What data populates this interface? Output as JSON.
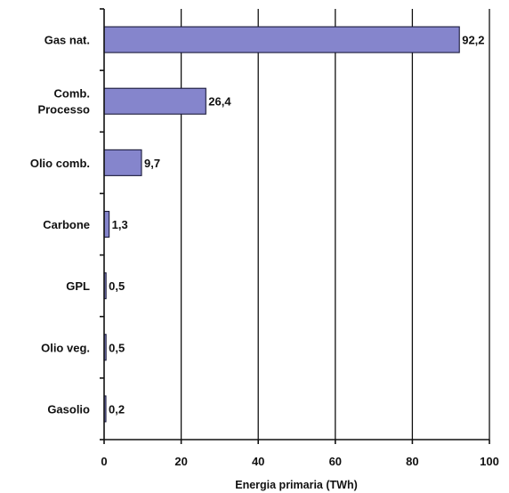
{
  "chart_data": {
    "type": "bar",
    "orientation": "horizontal",
    "categories": [
      [
        "Gas nat."
      ],
      [
        "Comb.",
        "Processo"
      ],
      [
        "Olio comb."
      ],
      [
        "Carbone"
      ],
      [
        "GPL"
      ],
      [
        "Olio veg."
      ],
      [
        "Gasolio"
      ]
    ],
    "values": [
      92.2,
      26.4,
      9.7,
      1.3,
      0.5,
      0.5,
      0.2
    ],
    "value_labels": [
      "92,2",
      "26,4",
      "9,7",
      "1,3",
      "0,5",
      "0,5",
      "0,2"
    ],
    "xlim": [
      0,
      100
    ],
    "xticks": [
      0,
      20,
      40,
      60,
      80,
      100
    ],
    "xlabel": "Energia primaria (TWh)",
    "ylabel": "",
    "title": "",
    "grid": "vertical",
    "bar_color": "#8585cc"
  }
}
